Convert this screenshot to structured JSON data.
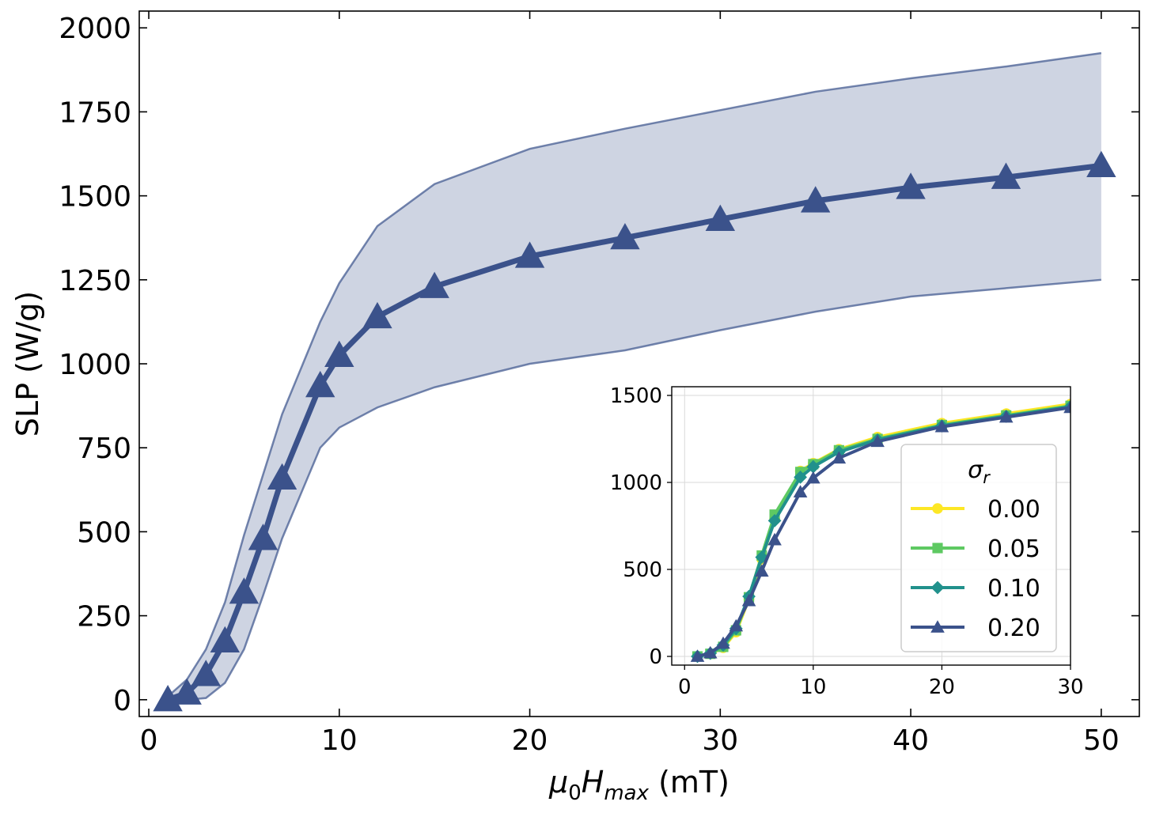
{
  "chart_data": [
    {
      "type": "line",
      "ylabel": "SLP (W/g)",
      "xlabel_parts": {
        "base": "μ",
        "base_sub": "0",
        "var": "H",
        "var_sub": "max",
        "unit": " (mT)"
      },
      "xlim": [
        -0.5,
        52
      ],
      "ylim": [
        -50,
        2050
      ],
      "xticks": [
        0,
        10,
        20,
        30,
        40,
        50
      ],
      "yticks": [
        0,
        250,
        500,
        750,
        1000,
        1250,
        1500,
        1750,
        2000
      ],
      "grid": false,
      "colors": {
        "line": "#3b528b",
        "band_fill": "#3b528b",
        "band_opacity": 0.25
      },
      "x": [
        1,
        2,
        3,
        4,
        5,
        6,
        7,
        9,
        10,
        12,
        15,
        20,
        25,
        30,
        35,
        40,
        45,
        50
      ],
      "series": [
        {
          "marker": "triangle",
          "values": [
            0,
            20,
            75,
            175,
            320,
            480,
            660,
            935,
            1025,
            1140,
            1230,
            1320,
            1375,
            1430,
            1485,
            1525,
            1555,
            1590
          ]
        }
      ],
      "band": {
        "upper": [
          10,
          60,
          150,
          290,
          490,
          670,
          850,
          1125,
          1240,
          1410,
          1535,
          1640,
          1700,
          1755,
          1810,
          1850,
          1885,
          1925
        ],
        "lower": [
          -5,
          0,
          5,
          50,
          150,
          310,
          480,
          750,
          810,
          870,
          930,
          1000,
          1040,
          1100,
          1155,
          1200,
          1225,
          1250
        ]
      }
    },
    {
      "type": "line",
      "inset": true,
      "xlim": [
        -1,
        30
      ],
      "ylim": [
        -50,
        1550
      ],
      "xticks": [
        0,
        10,
        20,
        30
      ],
      "yticks": [
        0,
        500,
        1000,
        1500
      ],
      "grid": true,
      "legend": {
        "title": "σ",
        "title_sub": "r",
        "placement": "lower-right"
      },
      "x": [
        1,
        2,
        3,
        4,
        5,
        6,
        7,
        9,
        10,
        12,
        15,
        20,
        25,
        30
      ],
      "series": [
        {
          "name": "0.00",
          "color": "#fde725",
          "marker": "circle",
          "values": [
            0,
            15,
            50,
            140,
            330,
            560,
            790,
            1065,
            1110,
            1190,
            1260,
            1340,
            1395,
            1450
          ]
        },
        {
          "name": "0.05",
          "color": "#5ec962",
          "marker": "square",
          "values": [
            0,
            15,
            55,
            150,
            340,
            580,
            815,
            1060,
            1105,
            1185,
            1250,
            1330,
            1385,
            1440
          ]
        },
        {
          "name": "0.10",
          "color": "#21918c",
          "marker": "diamond",
          "values": [
            0,
            18,
            65,
            160,
            345,
            570,
            780,
            1030,
            1090,
            1175,
            1245,
            1325,
            1380,
            1435
          ]
        },
        {
          "name": "0.20",
          "color": "#3b528b",
          "marker": "triangle",
          "values": [
            0,
            20,
            75,
            175,
            320,
            490,
            670,
            945,
            1025,
            1140,
            1235,
            1320,
            1375,
            1430
          ]
        }
      ]
    }
  ]
}
